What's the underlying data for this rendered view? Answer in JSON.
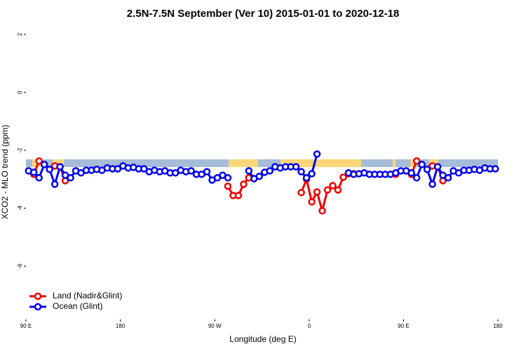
{
  "chart_data": {
    "type": "line",
    "title": "2.5N-7.5N September (Ver 10)   2015-01-01 to 2020-12-18",
    "x_label": "Longitude (deg E)",
    "y_label": "XCO2 - MLO trend (ppm)",
    "x": [
      92.5,
      97.5,
      102.5,
      107.5,
      112.5,
      117.5,
      122.5,
      127.5,
      132.5,
      137.5,
      142.5,
      147.5,
      152.5,
      157.5,
      162.5,
      167.5,
      172.5,
      177.5,
      182.5,
      187.5,
      192.5,
      197.5,
      202.5,
      207.5,
      212.5,
      217.5,
      222.5,
      227.5,
      232.5,
      237.5,
      242.5,
      247.5,
      252.5,
      257.5,
      262.5,
      267.5,
      272.5,
      277.5,
      282.5,
      287.5,
      292.5,
      297.5,
      302.5,
      307.5,
      312.5,
      317.5,
      322.5,
      327.5,
      332.5,
      337.5,
      342.5,
      347.5,
      352.5,
      357.5,
      362.5,
      367.5,
      372.5,
      377.5,
      382.5,
      387.5,
      392.5,
      397.5,
      402.5,
      407.5,
      412.5,
      417.5,
      422.5,
      427.5,
      432.5,
      437.5,
      442.5,
      447.5,
      452.5,
      457.5,
      462.5,
      467.5,
      472.5,
      477.5,
      482.5,
      487.5,
      492.5,
      497.5,
      502.5,
      507.5,
      512.5,
      517.5,
      522.5,
      527.5,
      532.5,
      537.5
    ],
    "series": [
      {
        "name": "Land (Nadir&Glint)",
        "color": "#ee0000",
        "values": [
          null,
          -2.83,
          -2.37,
          null,
          null,
          -2.54,
          -2.57,
          -3.05,
          null,
          null,
          null,
          null,
          null,
          null,
          null,
          null,
          null,
          null,
          null,
          null,
          null,
          null,
          null,
          null,
          null,
          null,
          null,
          null,
          null,
          null,
          null,
          null,
          null,
          null,
          null,
          null,
          null,
          null,
          -3.24,
          -3.56,
          -3.56,
          -3.17,
          -2.95,
          null,
          null,
          null,
          null,
          null,
          null,
          null,
          null,
          null,
          -3.46,
          -3.0,
          -3.78,
          -3.44,
          -4.09,
          -3.37,
          -3.22,
          -3.37,
          -2.93,
          -2.81,
          -2.81,
          null,
          null,
          null,
          null,
          null,
          null,
          null,
          -2.83,
          null,
          null,
          -2.83,
          -2.37,
          null,
          null,
          -2.54,
          -2.57,
          -3.05,
          null,
          null,
          null,
          null,
          null,
          null,
          null,
          null,
          null,
          null
        ]
      },
      {
        "name": "Ocean (Glint)",
        "color": "#0000ee",
        "values": [
          -2.71,
          -2.76,
          -2.95,
          -2.49,
          -2.66,
          -3.17,
          -2.57,
          -2.86,
          -2.95,
          -2.71,
          -2.78,
          -2.69,
          -2.69,
          -2.66,
          -2.69,
          -2.61,
          -2.64,
          -2.64,
          -2.54,
          -2.61,
          -2.59,
          -2.64,
          -2.64,
          -2.74,
          -2.69,
          -2.74,
          -2.71,
          -2.78,
          -2.78,
          -2.69,
          -2.74,
          -2.71,
          -2.83,
          -2.83,
          -2.74,
          -3.03,
          -2.95,
          -2.86,
          -2.95,
          null,
          null,
          null,
          -2.71,
          -2.98,
          -2.9,
          -2.76,
          -2.71,
          -2.57,
          -2.61,
          -2.57,
          -2.57,
          -2.57,
          -2.74,
          -2.95,
          -2.81,
          -2.13,
          null,
          null,
          null,
          null,
          null,
          -2.78,
          -2.83,
          -2.81,
          -2.78,
          -2.83,
          -2.83,
          -2.83,
          -2.83,
          -2.83,
          -2.78,
          -2.71,
          -2.71,
          -2.78,
          -2.95,
          -2.49,
          -2.66,
          -3.17,
          -2.57,
          -2.86,
          -2.95,
          -2.71,
          -2.78,
          -2.69,
          -2.69,
          -2.66,
          -2.69,
          -2.61,
          -2.64,
          -2.64
        ]
      }
    ],
    "xlim": [
      90,
      540
    ],
    "xticks": [
      {
        "value": 90,
        "label": "90 E"
      },
      180,
      {
        "value": 270,
        "label": "90 W"
      },
      {
        "value": 360,
        "label": "0"
      },
      {
        "value": 450,
        "label": "90 E"
      },
      {
        "value": 540,
        "label": "180"
      }
    ],
    "ylim": [
      -7.84,
      2.22
    ],
    "yticks": [
      2,
      0,
      -2,
      -4,
      -6
    ],
    "legend": "bottom-left"
  }
}
